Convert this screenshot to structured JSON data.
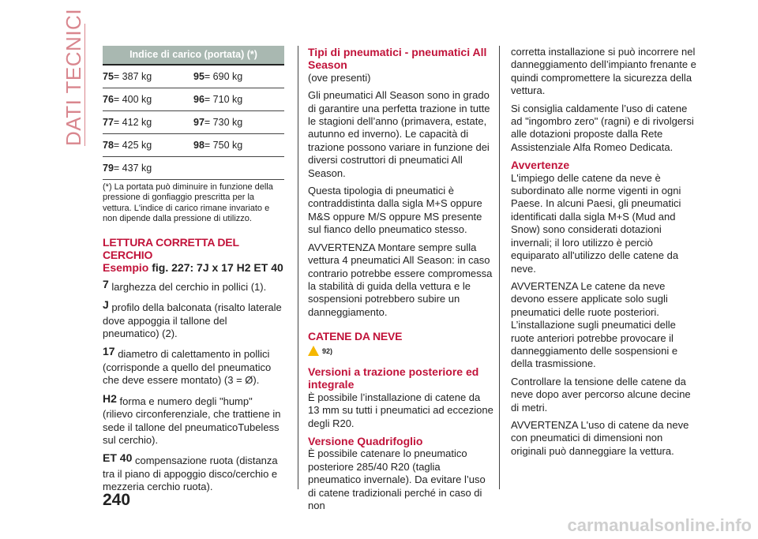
{
  "section_title": "DATI TECNICI",
  "load_table": {
    "header": "Indice di carico (portata) (*)",
    "rows": [
      [
        "75",
        "= 387 kg",
        "95",
        "= 690 kg"
      ],
      [
        "76",
        "= 400 kg",
        "96",
        "= 710 kg"
      ],
      [
        "77",
        "= 412 kg",
        "97",
        "= 730 kg"
      ],
      [
        "78",
        "= 425 kg",
        "98",
        "= 750 kg"
      ],
      [
        "79",
        "= 437 kg",
        "",
        ""
      ]
    ],
    "note": "(*) La portata può diminuire in funzione della pressione di gonfiaggio prescritta per la vettura. L'indice di carico rimane invariato e non dipende dalla pressione di utilizzo."
  },
  "rim": {
    "title": "LETTURA CORRETTA DEL CERCHIO",
    "example_label": "Esempio",
    "example_value": " fig. 227: 7J x 17 H2 ET 40",
    "items": [
      {
        "code": "7",
        "text": " larghezza del cerchio in pollici (1)."
      },
      {
        "code": "J",
        "text": " profilo della balconata (risalto laterale dove appoggia il tallone del pneumatico) (2)."
      },
      {
        "code": "17",
        "text": " diametro di calettamento in pollici (corrisponde a quello del pneumatico che deve essere montato) (3 = Ø)."
      },
      {
        "code": "H2",
        "text": " forma e numero degli \"hump\" (rilievo circonferenziale, che trattiene in sede il tallone del pneumaticoTubeless sul cerchio)."
      },
      {
        "code": "ET 40",
        "text": " compensazione ruota (distanza tra il piano di appoggio disco/cerchio e mezzeria cerchio ruota)."
      }
    ]
  },
  "tyres": {
    "title": "Tipi di pneumatici - pneumatici All Season",
    "p": [
      "(ove presenti)",
      "Gli pneumatici All Season sono in grado di garantire una perfetta trazione in tutte le stagioni dell’anno (primavera, estate, autunno ed inverno). Le capacità di trazione possono variare in funzione dei diversi costruttori di pneumatici All Season.",
      "Questa tipologia di pneumatici è contraddistinta dalla sigla M+S oppure M&S oppure M/S oppure MS presente sul fianco dello pneumatico stesso.",
      "AVVERTENZA Montare sempre sulla vettura 4 pneumatici All Season: in caso contrario potrebbe essere compromessa la stabilità di guida della vettura e le sospensioni potrebbero subire un danneggiamento."
    ]
  },
  "chains": {
    "title": "CATENE DA NEVE",
    "warning_ref": "92)",
    "warning_icon": "warning-car-icon",
    "rwd_title": "Versioni a trazione posteriore ed integrale",
    "rwd_text": "È possibile l’installazione di catene da 13 mm su tutti i pneumatici ad eccezione degli R20.",
    "qf_title": "Versione Quadrifoglio",
    "qf_text": "È possibile catenare lo pneumatico posteriore 285/40 R20 (taglia pneumatico invernale). Da evitare l’uso di catene tradizionali perché in caso di non corretta installazione si può incorrere nel danneggiamento dell’impianto frenante e quindi compromettere la sicurezza della vettura.",
    "p2": "Si consiglia caldamente l’uso di catene ad \"ingombro zero\" (ragni) e di rivolgersi alle dotazioni proposte dalla Rete Assistenziale Alfa Romeo Dedicata.",
    "warn_title": "Avvertenze",
    "w": [
      "L'impiego delle catene da neve è subordinato alle norme vigenti in ogni Paese. In alcuni Paesi, gli pneumatici identificati dalla sigla M+S (Mud and Snow) sono considerati dotazioni invernali; il loro utilizzo è perciò equiparato all'utilizzo delle catene da neve.",
      "AVVERTENZA Le catene da neve devono essere applicate solo sugli pneumatici delle ruote posteriori. L’installazione sugli pneumatici delle ruote anteriori potrebbe provocare il danneggiamento delle sospensioni e della trasmissione.",
      "Controllare la tensione delle catene da neve dopo aver percorso alcune decine di metri.",
      "AVVERTENZA L'uso di catene da neve con pneumatici di dimensioni non originali può danneggiare la vettura."
    ]
  },
  "page_number": "240",
  "watermark": "carmanualsonline.info",
  "colors": {
    "accent": "#c1133a",
    "side_title": "#d9868e",
    "table_header": "#a9b8b1"
  }
}
